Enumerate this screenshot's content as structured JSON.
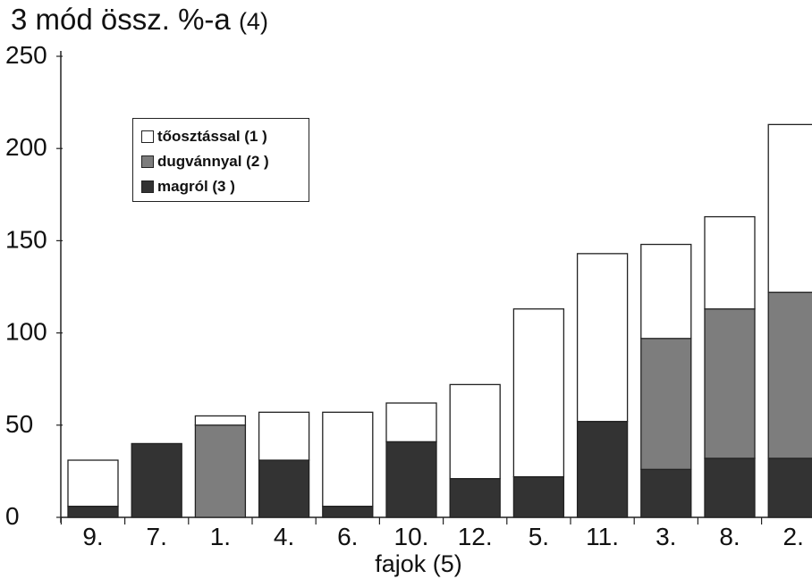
{
  "title": {
    "main": "3 mód össz. %-a",
    "num": "(4)"
  },
  "chart_data": {
    "type": "bar",
    "stacked": true,
    "title": "3 mód össz. %-a (4)",
    "xlabel": "fajok (5)",
    "ylabel": "",
    "ylim": [
      0,
      250
    ],
    "yticks": [
      "0",
      "50",
      "100",
      "150",
      "200",
      "250"
    ],
    "grid": false,
    "legend_position": "top-left",
    "categories": [
      "9.",
      "7.",
      "1.",
      "4.",
      "6.",
      "10.",
      "12.",
      "5.",
      "11.",
      "3.",
      "8.",
      "2."
    ],
    "series": [
      {
        "name": "magról (3 )",
        "color": "#333333",
        "values": [
          6,
          40,
          0,
          31,
          6,
          41,
          21,
          22,
          52,
          26,
          32,
          32
        ]
      },
      {
        "name": "dugvánnyal (2 )",
        "color": "#7d7d7d",
        "values": [
          0,
          0,
          50,
          0,
          0,
          0,
          0,
          0,
          0,
          71,
          81,
          90
        ]
      },
      {
        "name": "tőosztással (1 )",
        "color": "#ffffff",
        "values": [
          25,
          0,
          5,
          26,
          51,
          21,
          51,
          91,
          91,
          51,
          50,
          91
        ]
      }
    ]
  },
  "legend": {
    "items": [
      {
        "label": "tőosztással (1 )",
        "color": "#ffffff"
      },
      {
        "label": "dugvánnyal (2 )",
        "color": "#7d7d7d"
      },
      {
        "label": "magról (3 )",
        "color": "#333333"
      }
    ]
  }
}
